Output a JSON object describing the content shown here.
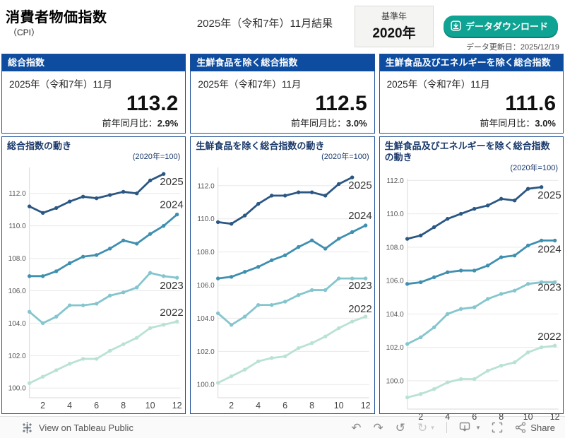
{
  "header": {
    "title": "消費者物価指数",
    "title_sub": "（CPI）",
    "result_label": "2025年（令和7年）11月結果",
    "base_year_label": "基準年",
    "base_year_value": "2020年",
    "download_button_label": "データダウンロード",
    "updated_label": "データ更新日：2025/12/19"
  },
  "colors": {
    "panel_header_blue": "#0d4c9e",
    "card_border_blue": "#1e4f96",
    "download_teal": "#0fa393",
    "series_2025": "#2a5783",
    "series_2024": "#3e8fb0",
    "series_2023": "#85c5ce",
    "series_2022": "#b9e2d4"
  },
  "kpis": [
    {
      "header": "総合指数",
      "period": "2025年（令和7年）11月",
      "value": "113.2",
      "yoy_label": "前年同月比：",
      "yoy_value": "2.9%"
    },
    {
      "header": "生鮮食品を除く総合指数",
      "period": "2025年（令和7年）11月",
      "value": "112.5",
      "yoy_label": "前年同月比：",
      "yoy_value": "3.0%"
    },
    {
      "header": "生鮮食品及びエネルギーを除く総合指数",
      "period": "2025年（令和7年）11月",
      "value": "111.6",
      "yoy_label": "前年同月比：",
      "yoy_value": "3.0%"
    }
  ],
  "chart_data": [
    {
      "type": "line",
      "title": "総合指数の動き",
      "note": "(2020年=100)",
      "xlabel": "",
      "ylabel": "",
      "xticks": [
        2,
        4,
        6,
        8,
        10,
        12
      ],
      "yticks": [
        100,
        102,
        104,
        106,
        108,
        110,
        112
      ],
      "ylim": [
        99.4,
        113.6
      ],
      "grid": "horizontal",
      "legend_position": "right-of-line-ends",
      "series": [
        {
          "name": "2025",
          "color": "#2a5783",
          "label_dy": 11,
          "values": [
            111.2,
            110.8,
            111.1,
            111.5,
            111.8,
            111.7,
            111.9,
            112.1,
            112.0,
            112.8,
            113.2
          ]
        },
        {
          "name": "2024",
          "color": "#3e8fb0",
          "label_dy": -14,
          "values": [
            106.9,
            106.9,
            107.2,
            107.7,
            108.1,
            108.2,
            108.6,
            109.1,
            108.9,
            109.5,
            110.0,
            110.7
          ]
        },
        {
          "name": "2023",
          "color": "#85c5ce",
          "label_dy": 11,
          "values": [
            104.7,
            104.0,
            104.4,
            105.1,
            105.1,
            105.2,
            105.7,
            105.9,
            106.2,
            107.1,
            106.9,
            106.8
          ]
        },
        {
          "name": "2022",
          "color": "#b9e2d4",
          "label_dy": -13,
          "values": [
            100.3,
            100.7,
            101.1,
            101.5,
            101.8,
            101.8,
            102.3,
            102.7,
            103.1,
            103.7,
            103.9,
            104.1
          ]
        }
      ]
    },
    {
      "type": "line",
      "title": "生鮮食品を除く総合指数の動き",
      "note": "(2020年=100)",
      "xlabel": "",
      "ylabel": "",
      "xticks": [
        2,
        4,
        6,
        8,
        10,
        12
      ],
      "yticks": [
        100,
        102,
        104,
        106,
        108,
        110,
        112
      ],
      "ylim": [
        99.2,
        113.1
      ],
      "grid": "horizontal",
      "legend_position": "right-of-line-ends",
      "series": [
        {
          "name": "2025",
          "color": "#2a5783",
          "label_dy": 11,
          "values": [
            109.8,
            109.7,
            110.2,
            110.9,
            111.4,
            111.4,
            111.6,
            111.6,
            111.4,
            112.1,
            112.5
          ]
        },
        {
          "name": "2024",
          "color": "#3e8fb0",
          "label_dy": -14,
          "values": [
            106.4,
            106.5,
            106.8,
            107.1,
            107.5,
            107.8,
            108.3,
            108.7,
            108.2,
            108.8,
            109.2,
            109.6
          ]
        },
        {
          "name": "2023",
          "color": "#85c5ce",
          "label_dy": 10,
          "values": [
            104.3,
            103.6,
            104.1,
            104.8,
            104.8,
            105.0,
            105.4,
            105.7,
            105.7,
            106.4,
            106.4,
            106.4
          ]
        },
        {
          "name": "2022",
          "color": "#b9e2d4",
          "label_dy": -11,
          "values": [
            100.1,
            100.5,
            100.9,
            101.4,
            101.6,
            101.7,
            102.2,
            102.5,
            102.9,
            103.4,
            103.8,
            104.1
          ]
        }
      ]
    },
    {
      "type": "line",
      "title": "生鮮食品及びエネルギーを除く総合指数の動き",
      "note": "(2020年=100)",
      "xlabel": "",
      "ylabel": "",
      "xticks": [
        2,
        4,
        6,
        8,
        10,
        12
      ],
      "yticks": [
        100,
        102,
        104,
        106,
        108,
        110,
        112
      ],
      "ylim": [
        98.3,
        112.1
      ],
      "grid": "horizontal",
      "legend_position": "right-of-line-ends",
      "series": [
        {
          "name": "2025",
          "color": "#2a5783",
          "label_dy": 11,
          "values": [
            108.5,
            108.7,
            109.2,
            109.7,
            110.0,
            110.3,
            110.5,
            110.9,
            110.8,
            111.5,
            111.6
          ]
        },
        {
          "name": "2024",
          "color": "#3e8fb0",
          "label_dy": 12,
          "values": [
            105.8,
            105.9,
            106.2,
            106.5,
            106.6,
            106.6,
            106.9,
            107.4,
            107.5,
            108.1,
            108.4,
            108.4
          ]
        },
        {
          "name": "2023",
          "color": "#85c5ce",
          "label_dy": 7,
          "values": [
            102.2,
            102.6,
            103.2,
            104.0,
            104.3,
            104.4,
            104.9,
            105.2,
            105.4,
            105.8,
            105.9,
            105.9
          ]
        },
        {
          "name": "2022",
          "color": "#b9e2d4",
          "label_dy": -13,
          "values": [
            99.0,
            99.2,
            99.5,
            99.9,
            100.1,
            100.1,
            100.6,
            100.9,
            101.1,
            101.7,
            102.0,
            102.1
          ]
        }
      ]
    }
  ],
  "footer": {
    "view_label": "View on Tableau Public",
    "share_label": "Share"
  }
}
